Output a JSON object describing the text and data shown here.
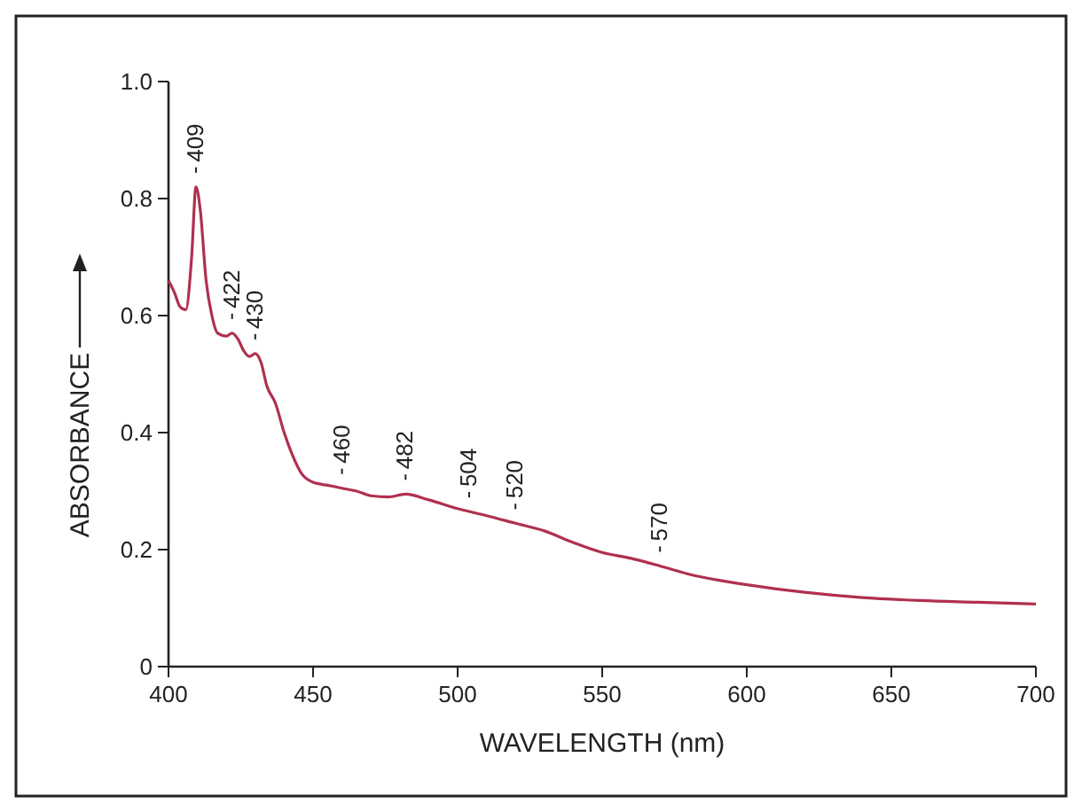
{
  "chart_data": {
    "type": "line",
    "xlabel": "WAVELENGTH (nm)",
    "ylabel": "ABSORBANCE",
    "x": [
      400,
      402,
      404,
      406,
      408,
      409.5,
      411,
      413,
      415,
      417,
      420,
      422,
      424,
      426,
      428,
      430,
      432,
      434,
      437,
      440,
      443,
      446,
      450,
      455,
      460,
      465,
      470,
      476,
      482,
      490,
      500,
      510,
      520,
      530,
      540,
      550,
      560,
      570,
      580,
      590,
      600,
      620,
      640,
      660,
      680,
      700
    ],
    "series": [
      {
        "color": "#b0304f",
        "values": [
          0.66,
          0.64,
          0.615,
          0.61,
          0.7,
          0.82,
          0.78,
          0.66,
          0.6,
          0.57,
          0.565,
          0.57,
          0.56,
          0.54,
          0.53,
          0.535,
          0.52,
          0.48,
          0.45,
          0.4,
          0.36,
          0.33,
          0.315,
          0.31,
          0.305,
          0.3,
          0.292,
          0.29,
          0.295,
          0.285,
          0.27,
          0.258,
          0.245,
          0.232,
          0.212,
          0.195,
          0.185,
          0.172,
          0.158,
          0.148,
          0.14,
          0.127,
          0.118,
          0.113,
          0.11,
          0.107
        ]
      }
    ],
    "xlim": [
      400,
      700
    ],
    "xticks": [
      400,
      450,
      500,
      550,
      600,
      650,
      700
    ],
    "ylim": [
      0,
      1
    ],
    "yticks": [
      0,
      0.2,
      0.4,
      0.6,
      0.8,
      {
        "value": 1,
        "label": "1.0"
      }
    ],
    "grid": false,
    "marker": "none",
    "line_style": "solid",
    "annotations": [
      {
        "text": "409",
        "x": 409.5,
        "y": 0.82
      },
      {
        "text": "422",
        "x": 422,
        "y": 0.57
      },
      {
        "text": "430",
        "x": 430,
        "y": 0.535
      },
      {
        "text": "460",
        "x": 460,
        "y": 0.305
      },
      {
        "text": "482",
        "x": 482,
        "y": 0.295
      },
      {
        "text": "504",
        "x": 504,
        "y": 0.265
      },
      {
        "text": "520",
        "x": 520,
        "y": 0.245
      },
      {
        "text": "570",
        "x": 570,
        "y": 0.172
      }
    ]
  }
}
